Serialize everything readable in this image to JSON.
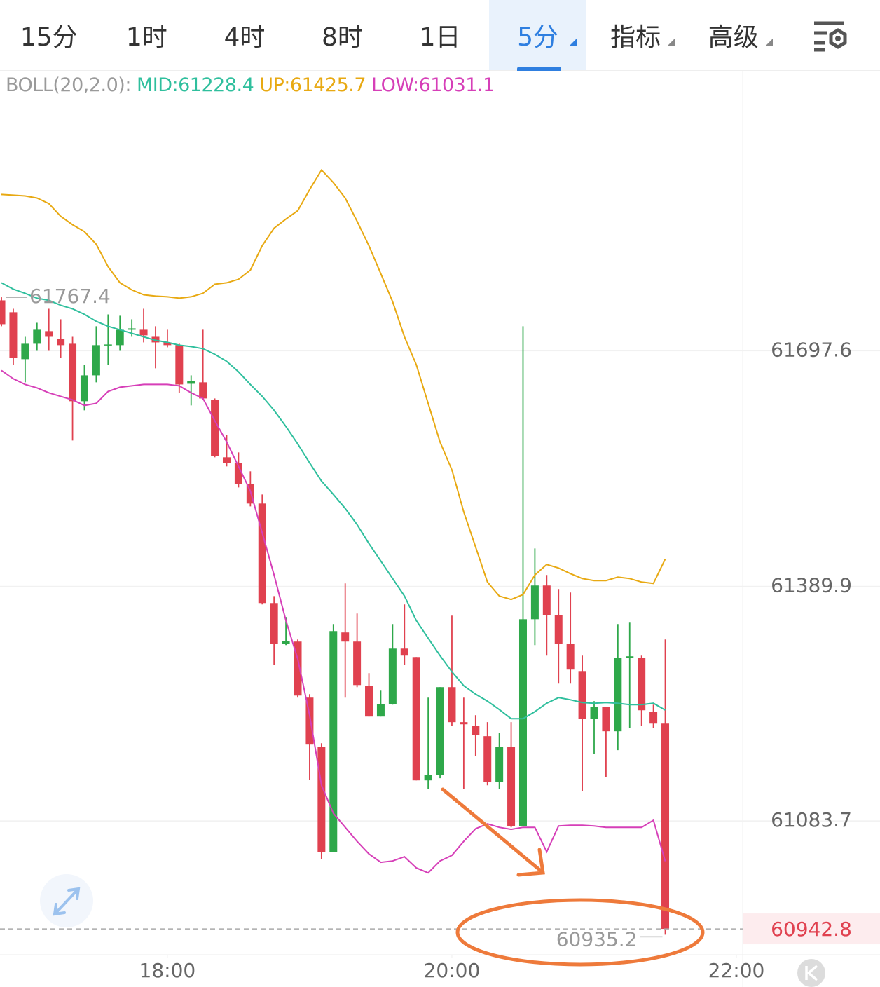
{
  "tabs": [
    "15分",
    "1时",
    "4时",
    "8时",
    "1日",
    "5分",
    "指标",
    "高级"
  ],
  "active_tab": 5,
  "chart_data": {
    "type": "candlestick",
    "up_color": "#2ea84a",
    "down_color": "#e0414f",
    "open": [
      61763.4,
      61747.9,
      61686.6,
      61706.7,
      61723.2,
      61713.1,
      61706.7,
      61631.7,
      61665.5,
      61704.9,
      61704.9,
      61725.0,
      61725.0,
      61715.8,
      61708.5,
      61704.9,
      61654.5,
      61656.4,
      61633.5,
      61558.5,
      61551.2,
      61523.7,
      61498.1,
      61368.2,
      61315.1,
      61317.9,
      61244.7,
      61180.6,
      61043.4,
      61329.8,
      61317.9,
      61260.2,
      61220.0,
      61236.4,
      61308.7,
      61297.7,
      61136.7,
      61144.0,
      61258.4,
      61212.7,
      61208.1,
      61194.4,
      61134.9,
      61180.6,
      61077.2,
      61347.1,
      61391.1,
      61352.6,
      61315.1,
      61279.4,
      61217.2,
      61232.8,
      61200.8,
      61296.8,
      61296.8,
      61226.4,
      61210.8
    ],
    "high": [
      61767.4,
      61752.4,
      61715.8,
      61734.1,
      61752.4,
      61738.7,
      61715.8,
      61679.3,
      61729.6,
      61745.1,
      61743.3,
      61738.7,
      61752.4,
      61729.6,
      61725.0,
      61706.7,
      61665.5,
      61725.0,
      61635.3,
      61587.8,
      61564.9,
      61540.2,
      61510.0,
      61377.3,
      61349.9,
      61320.6,
      61249.2,
      61185.2,
      61340.7,
      61393.8,
      61354.5,
      61276.7,
      61253.8,
      61340.7,
      61366.4,
      61297.7,
      61244.7,
      61258.4,
      61351.7,
      61244.7,
      61221.8,
      61212.7,
      61198.9,
      61212.7,
      61729.6,
      61439.5,
      61404.8,
      61386.5,
      61381.9,
      61299.6,
      61240.1,
      61232.8,
      61340.7,
      61342.6,
      61299.6,
      61235.5,
      61320.6
    ],
    "low": [
      61729.6,
      61679.3,
      61656.4,
      61697.5,
      61697.5,
      61688.4,
      61580.4,
      61619.8,
      61656.4,
      61679.3,
      61697.5,
      61715.8,
      61708.5,
      61674.7,
      61702.1,
      61642.7,
      61626.2,
      61633.5,
      61558.5,
      61546.6,
      61519.1,
      61494.4,
      61366.4,
      61287.7,
      61313.3,
      61244.7,
      61137.6,
      61034.2,
      61043.4,
      61244.7,
      61258.4,
      61220.0,
      61220.0,
      61235.5,
      61287.7,
      61136.7,
      61125.7,
      61139.5,
      61208.1,
      61125.7,
      61168.7,
      61130.3,
      61125.7,
      61075.4,
      61077.2,
      61313.3,
      61299.6,
      61263.0,
      61263.0,
      61123.0,
      61171.5,
      61141.3,
      61176.1,
      61205.3,
      61208.1,
      61205.3,
      60935.2
    ],
    "close": [
      61732.3,
      61688.4,
      61706.7,
      61725.0,
      61715.8,
      61704.9,
      61631.7,
      61665.5,
      61704.9,
      61705.8,
      61725.0,
      61726.8,
      61717.7,
      61708.5,
      61704.9,
      61653.6,
      61658.2,
      61635.3,
      61560.3,
      61551.2,
      61523.7,
      61498.1,
      61368.2,
      61315.1,
      61318.8,
      61247.4,
      61183.4,
      61043.4,
      61331.6,
      61317.9,
      61261.1,
      61220.0,
      61236.4,
      61308.7,
      61299.6,
      61136.7,
      61144.0,
      61258.4,
      61212.7,
      61209.9,
      61196.2,
      61134.9,
      61180.6,
      61077.2,
      61347.1,
      61391.1,
      61352.6,
      61315.1,
      61281.3,
      61217.2,
      61232.8,
      61200.8,
      61296.8,
      61298.7,
      61228.2,
      61210.8,
      60942.8
    ],
    "indicator": {
      "label": "BOLL(20,2.0):",
      "label_color": "#9a9a9a",
      "series": [
        {
          "name": "MID:",
          "color": "#2fbf9d",
          "values": [
            61786.3,
            61778.1,
            61772.6,
            61766.2,
            61763.4,
            61757.0,
            61752.4,
            61745.1,
            61736.0,
            61729.6,
            61725.0,
            61720.4,
            61715.8,
            61711.3,
            61708.5,
            61704.9,
            61703.0,
            61700.3,
            61693.0,
            61683.8,
            61670.1,
            61653.6,
            61638.1,
            61619.8,
            61598.7,
            61575.9,
            61551.2,
            61527.4,
            61510.0,
            61491.7,
            61470.7,
            61446.0,
            61423.1,
            61400.2,
            61377.3,
            61345.3,
            61322.4,
            61299.6,
            61278.5,
            61260.2,
            61249.2,
            61240.1,
            61229.1,
            61217.2,
            61217.2,
            61226.4,
            61237.4,
            61244.7,
            61241.9,
            61238.3,
            61237.4,
            61238.3,
            61237.4,
            61235.5,
            61235.5,
            61237.4,
            61228.4
          ]
        },
        {
          "name": "UP:",
          "color": "#e8a912",
          "values": [
            61901.6,
            61900.7,
            61899.7,
            61897.0,
            61889.7,
            61873.2,
            61862.2,
            61853.1,
            61836.6,
            61807.3,
            61786.3,
            61777.1,
            61770.7,
            61768.9,
            61768.0,
            61766.2,
            61768.0,
            61772.6,
            61784.5,
            61786.3,
            61790.9,
            61802.8,
            61834.8,
            61857.7,
            61869.6,
            61880.5,
            61908.0,
            61933.6,
            61917.1,
            61897.0,
            61866.8,
            61834.8,
            61798.2,
            61761.6,
            61715.8,
            61679.3,
            61628.9,
            61578.6,
            61542.0,
            61487.1,
            61441.4,
            61395.6,
            61377.3,
            61372.8,
            61379.2,
            61404.8,
            61418.5,
            61413.9,
            61406.6,
            61400.2,
            61397.5,
            61397.5,
            61402.0,
            61400.2,
            61395.6,
            61393.8,
            61425.7
          ]
        },
        {
          "name": "LOW:",
          "color": "#d63fb8",
          "values": [
            61671.9,
            61661.0,
            61653.6,
            61649.1,
            61642.7,
            61638.1,
            61633.5,
            61626.2,
            61628.9,
            61644.5,
            61650.0,
            61651.8,
            61653.6,
            61653.6,
            61653.6,
            61651.8,
            61642.7,
            61635.3,
            61606.1,
            61578.6,
            61546.6,
            61514.6,
            61459.7,
            61404.8,
            61345.3,
            61295.0,
            61221.8,
            61130.3,
            61093.7,
            61075.4,
            61057.1,
            61040.7,
            61029.7,
            61031.5,
            61037.0,
            61022.4,
            61015.9,
            61031.5,
            61038.8,
            61057.1,
            61073.6,
            61080.0,
            61075.4,
            61072.7,
            61075.4,
            61075.4,
            61043.4,
            61077.2,
            61078.1,
            61078.1,
            61077.2,
            61075.4,
            61075.4,
            61075.4,
            61075.4,
            61084.6,
            61031.1
          ]
        }
      ]
    },
    "ylim": [
      60909,
      62064
    ],
    "yticks": [
      61083.7,
      61389.9,
      61697.6
    ],
    "xlim": [
      -0.12,
      62.53
    ],
    "xticks": [
      {
        "value": 14,
        "label": "18:00"
      },
      {
        "value": 38,
        "label": "20:00"
      },
      {
        "value": 62,
        "label": "22:00"
      }
    ],
    "grid": true
  }
}
